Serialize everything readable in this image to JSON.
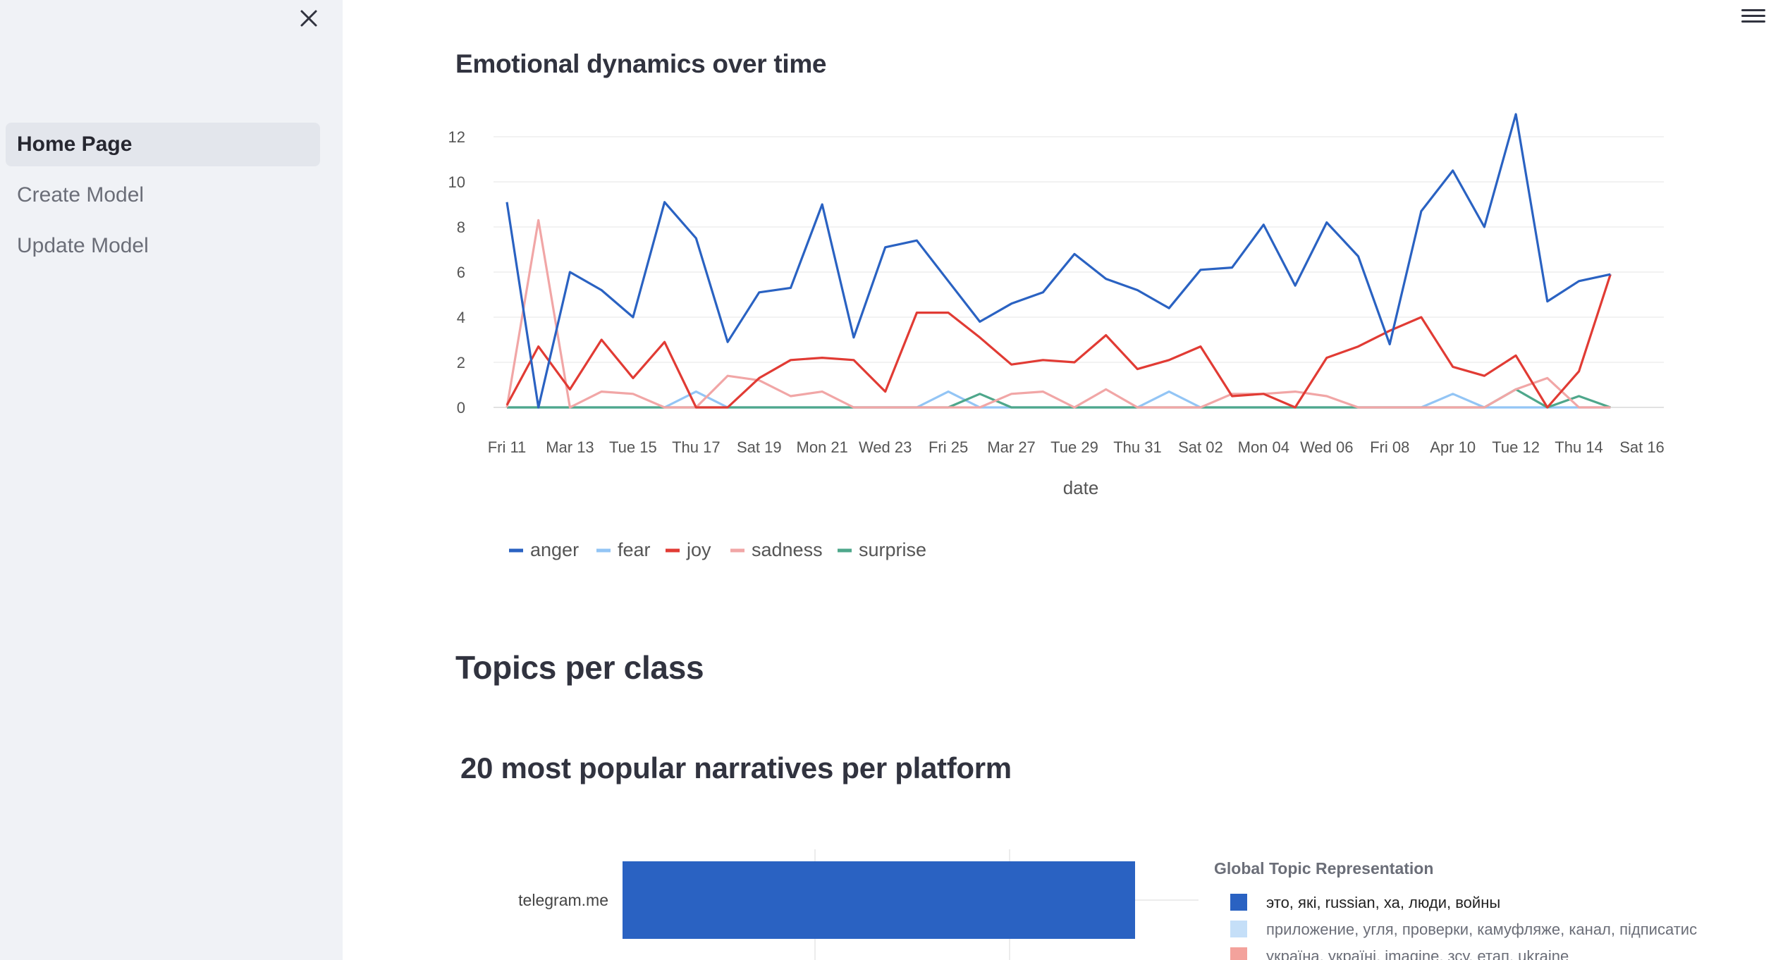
{
  "sidebar": {
    "items": [
      {
        "label": "Home Page",
        "active": true
      },
      {
        "label": "Create Model",
        "active": false
      },
      {
        "label": "Update Model",
        "active": false
      }
    ],
    "close_icon": "close-icon"
  },
  "header": {
    "menu_icon": "hamburger-menu-icon"
  },
  "main": {
    "emotion_title": "Emotional dynamics over time",
    "topics_title": "Topics per class",
    "narratives_title": "20 most popular narratives per platform"
  },
  "colors": {
    "anger": "#2a62c2",
    "fear": "#93c5f5",
    "joy": "#e13b34",
    "sadness": "#f1a6a6",
    "surprise": "#4ea78b"
  },
  "chart_data": [
    {
      "type": "line",
      "title": "Emotional dynamics over time",
      "xlabel": "date",
      "ylabel": "",
      "x_tick_labels": [
        "Fri 11",
        "Mar 13",
        "Tue 15",
        "Thu 17",
        "Sat 19",
        "Mon 21",
        "Wed 23",
        "Fri 25",
        "Mar 27",
        "Tue 29",
        "Thu 31",
        "Sat 02",
        "Mon 04",
        "Wed 06",
        "Fri 08",
        "Apr 10",
        "Tue 12",
        "Thu 14",
        "Sat 16"
      ],
      "y_ticks": [
        0,
        2,
        4,
        6,
        8,
        10,
        12
      ],
      "ylim": [
        0,
        13
      ],
      "x_range_days": [
        0,
        36
      ],
      "legend_position": "bottom-left",
      "grid": true,
      "series": [
        {
          "name": "anger",
          "color": "#2a62c2",
          "values": [
            9.1,
            0,
            6,
            5.2,
            4,
            9.1,
            7.5,
            2.9,
            5.1,
            5.3,
            9,
            3.1,
            7.1,
            7.4,
            5.6,
            3.8,
            4.6,
            5.1,
            6.8,
            5.7,
            5.2,
            4.4,
            6.1,
            6.2,
            8.1,
            5.4,
            8.2,
            6.7,
            2.8,
            8.7,
            10.5,
            8,
            13,
            4.7,
            5.6,
            5.9
          ]
        },
        {
          "name": "fear",
          "color": "#93c5f5",
          "values": [
            0,
            0,
            0,
            0,
            0,
            0,
            0.7,
            0,
            0,
            0,
            0,
            0,
            0,
            0,
            0.7,
            0,
            0,
            0,
            0,
            0,
            0,
            0.7,
            0,
            0,
            0,
            0,
            0,
            0,
            0,
            0,
            0.6,
            0,
            0,
            0,
            0,
            0
          ]
        },
        {
          "name": "joy",
          "color": "#e13b34",
          "values": [
            0.1,
            2.7,
            0.8,
            3,
            1.3,
            2.9,
            0,
            0,
            1.3,
            2.1,
            2.2,
            2.1,
            0.7,
            4.2,
            4.2,
            3.1,
            1.9,
            2.1,
            2,
            3.2,
            1.7,
            2.1,
            2.7,
            0.5,
            0.6,
            0,
            2.2,
            2.7,
            3.4,
            4,
            1.8,
            1.4,
            2.3,
            0,
            1.6,
            5.9
          ]
        },
        {
          "name": "sadness",
          "color": "#f1a6a6",
          "values": [
            0,
            8.3,
            0,
            0.7,
            0.6,
            0,
            0,
            1.4,
            1.2,
            0.5,
            0.7,
            0,
            0,
            0,
            0,
            0,
            0.6,
            0.7,
            0,
            0.8,
            0,
            0,
            0,
            0.6,
            0.6,
            0.7,
            0.5,
            0,
            0,
            0,
            0,
            0,
            0.8,
            1.3,
            0,
            0
          ]
        },
        {
          "name": "surprise",
          "color": "#4ea78b",
          "values": [
            0,
            0,
            0,
            0,
            0,
            0,
            0,
            0,
            0,
            0,
            0,
            0,
            0,
            0,
            0,
            0.6,
            0,
            0,
            0,
            0,
            0,
            0,
            0,
            0,
            0,
            0,
            0,
            0,
            0,
            0,
            0,
            0,
            0.8,
            0,
            0.5,
            0
          ]
        }
      ]
    },
    {
      "type": "bar",
      "orientation": "horizontal",
      "title": "20 most popular narratives per platform",
      "categories": [
        "telegram.me"
      ],
      "legend_title": "Global Topic Representation",
      "legend_position": "right",
      "series": [
        {
          "name": "это, які, russian, ха, люди, войны",
          "color": "#2a62c2",
          "values": [
            1
          ]
        },
        {
          "name": "приложение, угля, проверки, камуфляже, канал, підписатис",
          "color": "#c5dff8",
          "values": [
            0
          ]
        },
        {
          "name": "україна, україні, imagine, зсу, етап, ukraine",
          "color": "#f3a29c",
          "values": [
            0
          ]
        }
      ]
    }
  ]
}
